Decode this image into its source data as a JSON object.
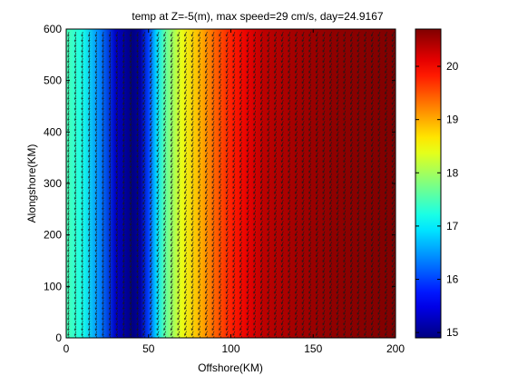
{
  "chart_data": {
    "type": "heatmap",
    "title": "temp at Z=-5(m), max speed=29 cm/s,  day=24.9167",
    "xlabel": "Offshore(KM)",
    "ylabel": "Alongshore(KM)",
    "xlim": [
      0,
      200
    ],
    "ylim": [
      0,
      600
    ],
    "x_ticks": [
      "0",
      "50",
      "100",
      "150",
      "200"
    ],
    "y_ticks": [
      "0",
      "100",
      "200",
      "300",
      "400",
      "500",
      "600"
    ],
    "colorbar": {
      "range": [
        14.9,
        20.7
      ],
      "ticks": [
        "15",
        "16",
        "17",
        "18",
        "19",
        "20"
      ],
      "colormap": "jet"
    },
    "temperature_profile": {
      "x": [
        0,
        10,
        20,
        30,
        40,
        45,
        50,
        55,
        60,
        70,
        80,
        90,
        100,
        110,
        120,
        140,
        160,
        180,
        200
      ],
      "values": [
        17.5,
        17.2,
        16.4,
        15.3,
        14.9,
        15.1,
        16.0,
        16.9,
        17.6,
        18.4,
        18.9,
        19.4,
        19.8,
        20.1,
        20.35,
        20.5,
        20.6,
        20.65,
        20.7
      ]
    },
    "vector_field": {
      "description_free": true,
      "max_speed_cm_s": 29,
      "x_spacing_km": 4.2,
      "y_spacing_km": 10.2
    }
  }
}
